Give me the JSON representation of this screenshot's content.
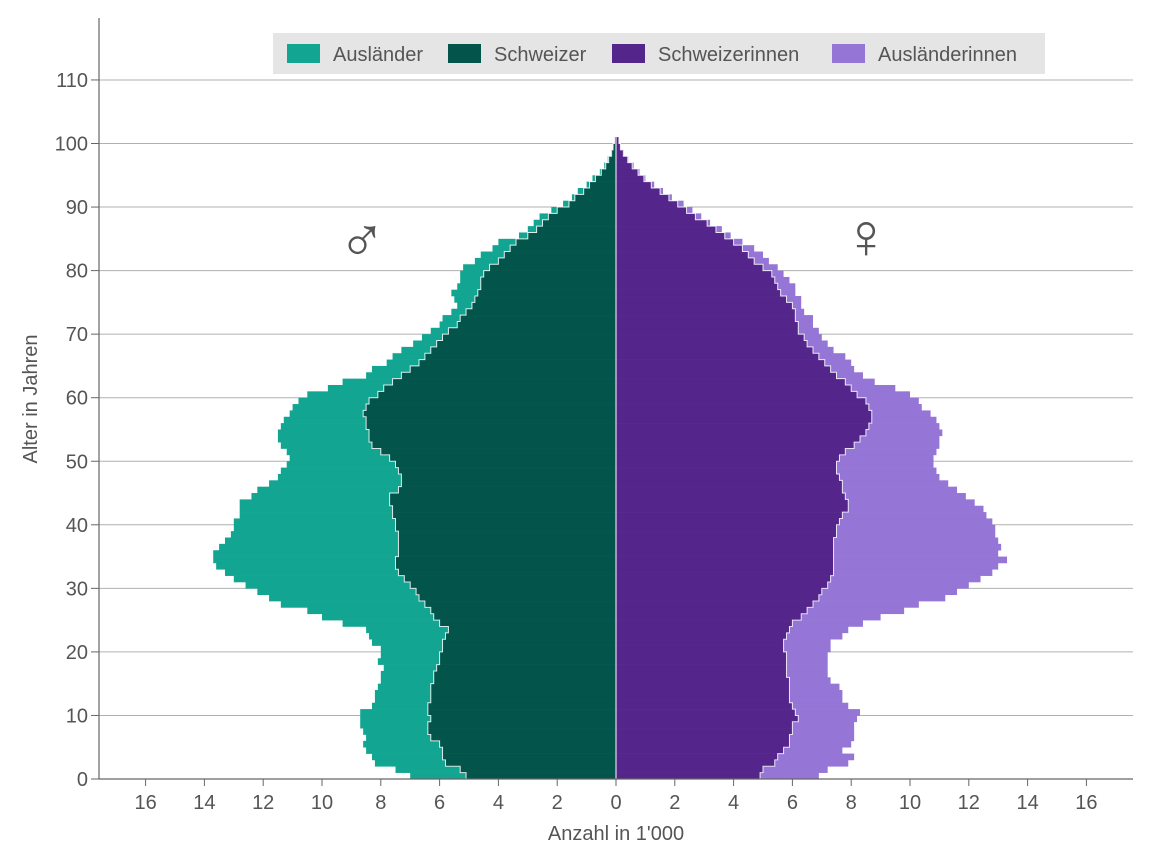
{
  "chart_data": {
    "type": "bar",
    "orientation": "horizontal-population-pyramid",
    "stacked": true,
    "xlabel": "Anzahl in 1'000",
    "ylabel": "Alter in Jahren",
    "xlim": [
      -17.5,
      17.6
    ],
    "ylim": [
      0,
      119
    ],
    "x_ticks": [
      16,
      14,
      12,
      10,
      8,
      6,
      4,
      2,
      0,
      2,
      4,
      6,
      8,
      10,
      12,
      14,
      16
    ],
    "x_tick_values": [
      -16,
      -14,
      -12,
      -10,
      -8,
      -6,
      -4,
      -2,
      0,
      2,
      4,
      6,
      8,
      10,
      12,
      14,
      16
    ],
    "y_ticks": [
      0,
      10,
      20,
      30,
      40,
      50,
      60,
      70,
      80,
      90,
      100,
      110
    ],
    "grid": "horizontal",
    "legend_position": "top",
    "ages_from": 0,
    "ages_to": 100,
    "male_symbol": "♂",
    "female_symbol": "♀",
    "series": [
      {
        "name": "Ausländer",
        "side": "left",
        "color": "#12a591",
        "values": [
          1.9,
          2.2,
          2.4,
          2.4,
          2.6,
          2.6,
          2.2,
          2.2,
          2.3,
          2.4,
          2.3,
          1.9,
          1.9,
          1.9,
          1.8,
          1.8,
          1.8,
          1.8,
          2.1,
          2.0,
          2.1,
          2.4,
          2.6,
          2.8,
          3.3,
          3.8,
          4.2,
          4.9,
          5.1,
          5.4,
          5.6,
          5.8,
          5.9,
          6.1,
          6.2,
          6.3,
          6.1,
          5.9,
          5.7,
          5.5,
          5.5,
          5.2,
          5.2,
          5.1,
          4.7,
          4.8,
          4.5,
          4.2,
          4.0,
          3.7,
          3.4,
          3.2,
          3.1,
          3.1,
          3.1,
          2.9,
          2.8,
          2.5,
          2.5,
          2.4,
          2.4,
          1.9,
          1.7,
          1.2,
          1.3,
          1.1,
          1.1,
          1.0,
          0.8,
          0.7,
          0.6,
          0.6,
          0.6,
          0.5,
          0.5,
          0.7,
          0.9,
          0.8,
          0.7,
          0.8,
          0.9,
          0.8,
          0.8,
          0.6,
          0.6,
          0.3,
          0.3,
          0.3,
          0.3,
          0.2,
          0.2,
          0.1,
          0.2,
          0.1,
          0.1,
          0.05,
          0.05,
          0.03,
          0.02,
          0,
          0
        ]
      },
      {
        "name": "Schweizer",
        "side": "left",
        "color": "#03544b",
        "values": [
          5.1,
          5.3,
          5.8,
          5.9,
          5.9,
          6.0,
          6.3,
          6.4,
          6.4,
          6.3,
          6.4,
          6.4,
          6.3,
          6.3,
          6.3,
          6.2,
          6.2,
          6.1,
          6.0,
          6.0,
          5.9,
          5.9,
          5.8,
          5.7,
          6.0,
          6.2,
          6.3,
          6.5,
          6.7,
          6.8,
          7.0,
          7.2,
          7.4,
          7.5,
          7.5,
          7.4,
          7.4,
          7.4,
          7.4,
          7.5,
          7.5,
          7.6,
          7.6,
          7.7,
          7.7,
          7.4,
          7.3,
          7.3,
          7.4,
          7.5,
          7.7,
          8.0,
          8.3,
          8.4,
          8.4,
          8.5,
          8.5,
          8.6,
          8.5,
          8.4,
          8.1,
          7.9,
          7.6,
          7.3,
          7.0,
          6.7,
          6.5,
          6.3,
          6.1,
          5.9,
          5.7,
          5.4,
          5.3,
          5.1,
          4.9,
          4.8,
          4.7,
          4.6,
          4.6,
          4.5,
          4.3,
          4.0,
          3.8,
          3.6,
          3.4,
          3.0,
          2.7,
          2.5,
          2.3,
          2.0,
          1.6,
          1.4,
          1.1,
          0.9,
          0.7,
          0.5,
          0.35,
          0.25,
          0.15,
          0.1,
          0.05
        ]
      },
      {
        "name": "Schweizerinnen",
        "side": "right",
        "color": "#54258b",
        "values": [
          4.9,
          5.0,
          5.4,
          5.5,
          5.7,
          5.9,
          5.9,
          6.0,
          6.0,
          6.2,
          6.1,
          6.0,
          5.9,
          5.9,
          5.9,
          5.9,
          5.8,
          5.8,
          5.8,
          5.8,
          5.7,
          5.7,
          5.8,
          5.9,
          6.0,
          6.3,
          6.5,
          6.7,
          6.9,
          7.0,
          7.2,
          7.3,
          7.4,
          7.4,
          7.4,
          7.4,
          7.4,
          7.4,
          7.5,
          7.5,
          7.6,
          7.7,
          7.9,
          7.9,
          7.8,
          7.7,
          7.7,
          7.6,
          7.5,
          7.5,
          7.6,
          7.8,
          8.1,
          8.3,
          8.5,
          8.6,
          8.7,
          8.7,
          8.6,
          8.5,
          8.2,
          8.0,
          7.8,
          7.5,
          7.3,
          7.1,
          6.9,
          6.7,
          6.5,
          6.4,
          6.2,
          6.2,
          6.1,
          6.1,
          6.0,
          5.8,
          5.6,
          5.5,
          5.4,
          5.3,
          5.0,
          4.7,
          4.5,
          4.3,
          4.0,
          3.7,
          3.4,
          3.1,
          2.7,
          2.4,
          2.1,
          1.8,
          1.5,
          1.2,
          0.95,
          0.75,
          0.55,
          0.4,
          0.25,
          0.15,
          0.1
        ]
      },
      {
        "name": "Ausländerinnen",
        "side": "right",
        "color": "#9575d6",
        "values": [
          2.0,
          2.2,
          2.5,
          2.6,
          2.0,
          2.1,
          2.2,
          2.1,
          2.1,
          2.0,
          2.2,
          1.9,
          1.8,
          1.8,
          1.7,
          1.4,
          1.4,
          1.4,
          1.4,
          1.4,
          1.6,
          1.6,
          1.9,
          2.0,
          2.4,
          2.7,
          3.3,
          3.6,
          4.3,
          4.6,
          4.8,
          5.1,
          5.4,
          5.6,
          5.9,
          5.6,
          5.7,
          5.6,
          5.4,
          5.4,
          5.2,
          4.9,
          4.6,
          4.3,
          4.1,
          3.9,
          3.6,
          3.4,
          3.4,
          3.3,
          3.2,
          3.1,
          2.9,
          2.7,
          2.6,
          2.4,
          2.2,
          2.0,
          1.8,
          1.8,
          1.8,
          1.5,
          1.0,
          0.9,
          0.8,
          0.9,
          0.9,
          0.7,
          0.7,
          0.6,
          0.7,
          0.5,
          0.6,
          0.3,
          0.3,
          0.5,
          0.5,
          0.6,
          0.5,
          0.4,
          0.5,
          0.5,
          0.5,
          0.4,
          0.3,
          0.2,
          0.2,
          0.1,
          0.2,
          0.2,
          0.2,
          0.1,
          0.1,
          0.1,
          0.05,
          0.05,
          0.05,
          0.02,
          0.02,
          0.01,
          0
        ]
      }
    ]
  }
}
